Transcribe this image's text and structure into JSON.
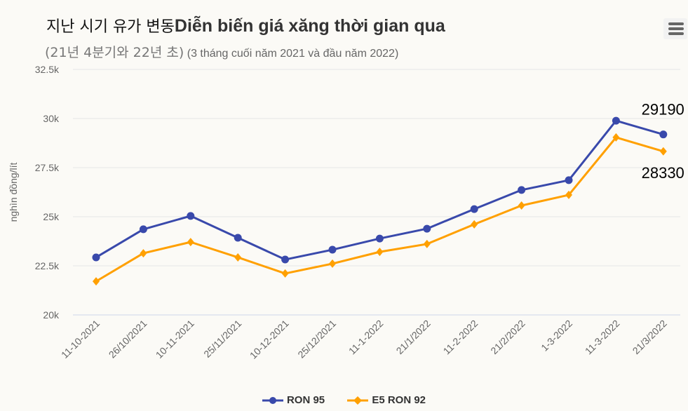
{
  "title_ko": "지난 시기 유가 변동",
  "title_vi": "Diễn biến giá xăng thời gian qua",
  "subtitle_ko": "(21년 4분기와 22년 초)",
  "subtitle_vi": "(3 tháng cuối năm 2021 và đầu năm 2022)",
  "menu_icon": "hamburger-icon",
  "chart_data": {
    "type": "line",
    "title": "Diễn biến giá xăng thời gian qua",
    "subtitle": "(3 tháng cuối năm 2021 và đầu năm 2022)",
    "xlabel": "",
    "ylabel": "nghìn đồng/lít",
    "ylim": [
      20000,
      32500
    ],
    "yticks": [
      20000,
      22500,
      25000,
      27500,
      30000,
      32500
    ],
    "ytick_labels": [
      "20k",
      "22.5k",
      "25k",
      "27.5k",
      "30k",
      "32.5k"
    ],
    "grid": true,
    "legend": "bottom",
    "categories": [
      "11-10-2021",
      "26/10/2021",
      "10-11-2021",
      "25/11/2021",
      "10-12-2021",
      "25/12/2021",
      "11-1-2022",
      "21/1/2022",
      "11-2-2022",
      "21/2/2022",
      "1-3-2022",
      "11-3-2022",
      "21/3/2022"
    ],
    "series": [
      {
        "name": "RON 95",
        "color": "#3949ab",
        "marker": "circle",
        "values": [
          22930,
          24360,
          25040,
          23930,
          22820,
          23320,
          23890,
          24390,
          25390,
          26360,
          26860,
          29890,
          29190
        ],
        "data_labels": {
          "12": "29190"
        }
      },
      {
        "name": "E5 RON 92",
        "color": "#ffa000",
        "marker": "diamond",
        "values": [
          21710,
          23140,
          23710,
          22930,
          22110,
          22610,
          23210,
          23610,
          24610,
          25570,
          26110,
          29040,
          28330
        ],
        "data_labels": {
          "12": "28330"
        }
      }
    ]
  }
}
